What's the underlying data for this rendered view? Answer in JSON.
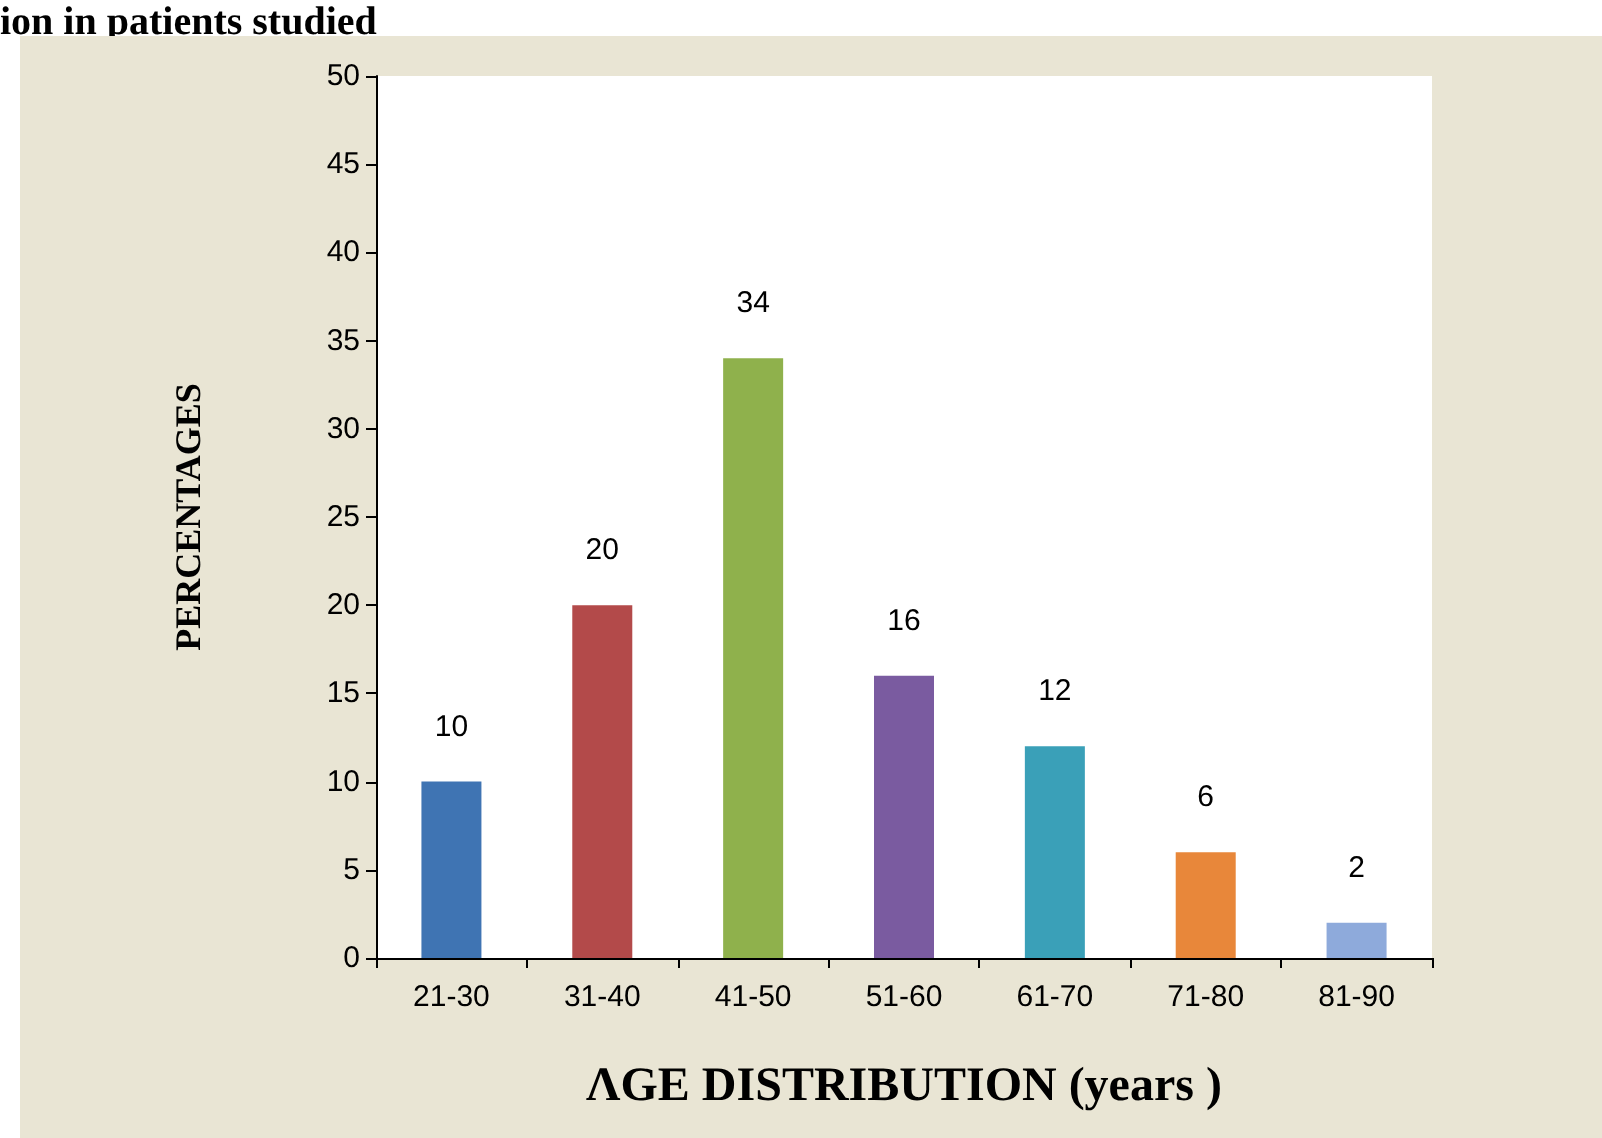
{
  "chart_data": {
    "type": "bar",
    "title": "ion in patients studied",
    "xlabel": "ΛGE DISTRIBUTION (years )",
    "ylabel": "PERCENTAGES",
    "categories": [
      "21-30",
      "31-40",
      "41-50",
      "51-60",
      "61-70",
      "71-80",
      "81-90"
    ],
    "values": [
      10,
      20,
      34,
      16,
      12,
      6,
      2
    ],
    "colors": [
      "#3f74b3",
      "#b34a4a",
      "#8fb14c",
      "#7a5ba0",
      "#3aa0b8",
      "#e8873a",
      "#8eaadb"
    ],
    "ylim": [
      0,
      50
    ],
    "yticks": [
      0,
      5,
      10,
      15,
      20,
      25,
      30,
      35,
      40,
      45,
      50
    ],
    "grid": false,
    "data_labels": true
  }
}
